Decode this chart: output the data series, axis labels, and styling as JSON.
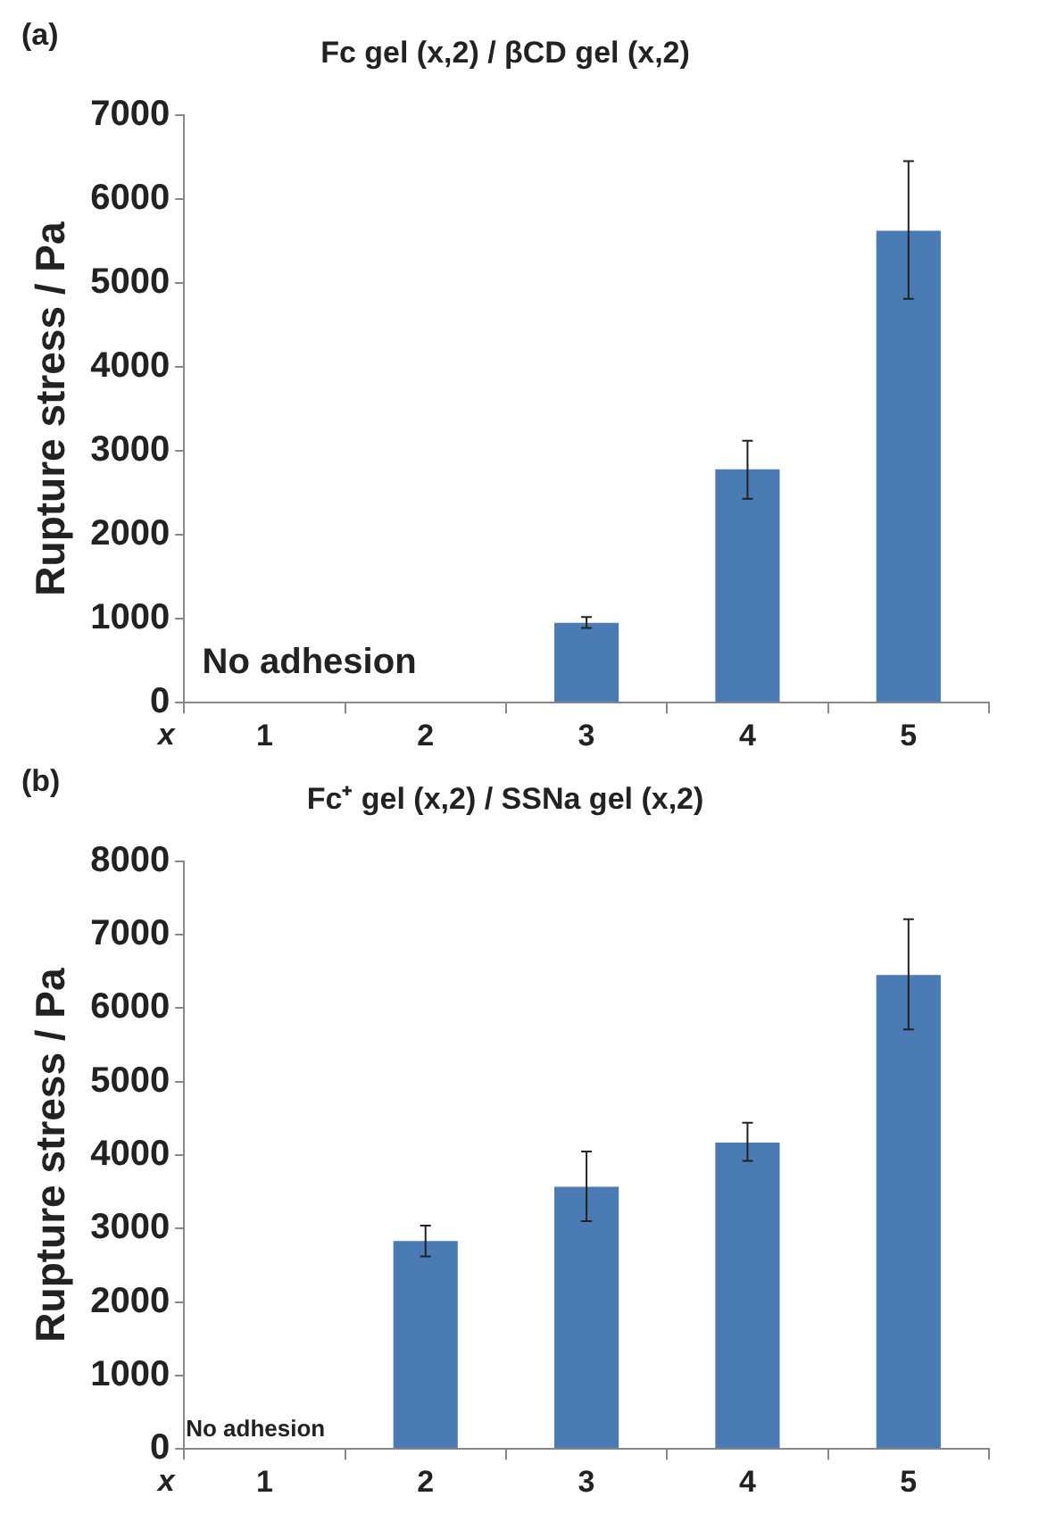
{
  "chart_data": [
    {
      "type": "bar",
      "title": "Fc gel (x,2) / βCD gel (x,2)",
      "xlabel": "x",
      "ylabel": "Rupture stress / Pa",
      "categories": [
        "1",
        "2",
        "3",
        "4",
        "5"
      ],
      "values": [
        null,
        null,
        950,
        2780,
        5620
      ],
      "errors": [
        null,
        null,
        [
          890,
          1020
        ],
        [
          2430,
          3120
        ],
        [
          4810,
          6450
        ]
      ],
      "color": "#4a7bb5",
      "ylim": [
        0,
        7000
      ],
      "yticks": [
        0,
        1000,
        2000,
        3000,
        4000,
        5000,
        6000,
        7000
      ],
      "grid": false,
      "legend": false,
      "annotations": [
        "(a)",
        "No adhesion"
      ]
    },
    {
      "type": "bar",
      "title": "Fc⁺ gel (x,2) / SSNa gel (x,2)",
      "xlabel": "x",
      "ylabel": "Rupture stress / Pa",
      "categories": [
        "1",
        "2",
        "3",
        "4",
        "5"
      ],
      "values": [
        null,
        2830,
        3570,
        4170,
        6450
      ],
      "errors": [
        null,
        [
          2620,
          3040
        ],
        [
          3100,
          4050
        ],
        [
          3920,
          4440
        ],
        [
          5710,
          7210
        ]
      ],
      "color": "#4a7bb5",
      "ylim": [
        0,
        8000
      ],
      "yticks": [
        0,
        1000,
        2000,
        3000,
        4000,
        5000,
        6000,
        7000,
        8000
      ],
      "grid": false,
      "legend": false,
      "annotations": [
        "(b)",
        "No adhesion"
      ]
    }
  ]
}
